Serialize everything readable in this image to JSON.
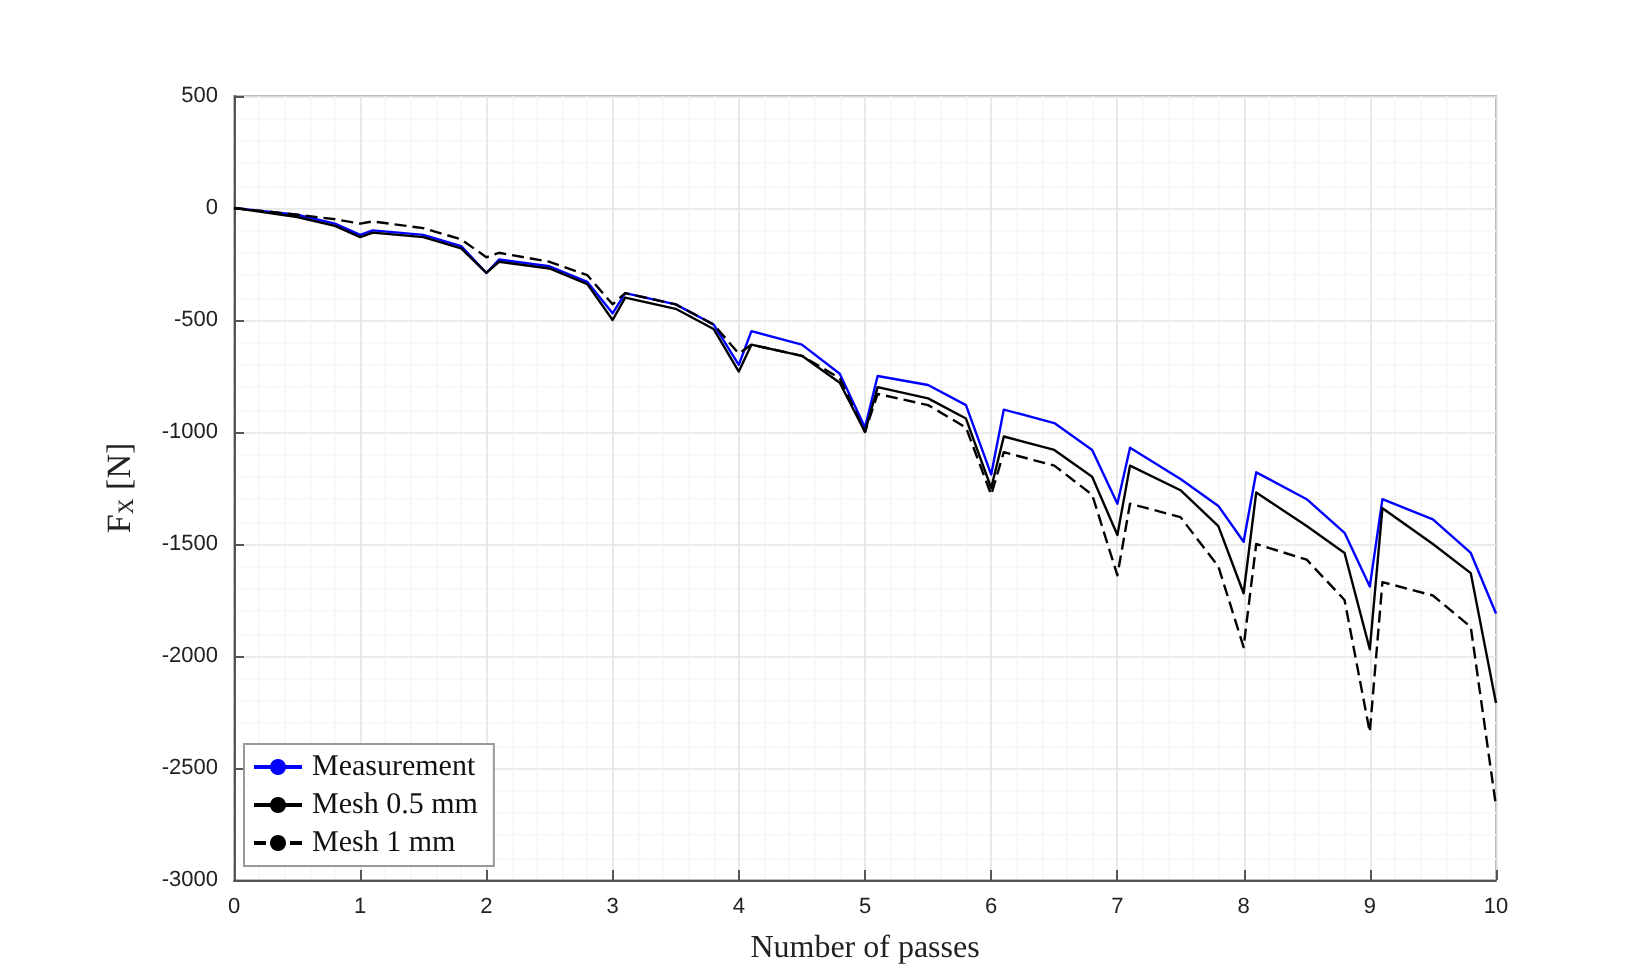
{
  "chart_data": {
    "type": "line",
    "xlabel": "Number of passes",
    "ylabel": "F$_{X}$ [N]",
    "x": [
      0,
      0.5,
      0.8,
      1,
      1.1,
      1.5,
      1.8,
      2,
      2.1,
      2.5,
      2.8,
      3,
      3.1,
      3.5,
      3.8,
      4,
      4.1,
      4.5,
      4.8,
      5,
      5.1,
      5.5,
      5.8,
      6,
      6.1,
      6.5,
      6.8,
      7,
      7.1,
      7.5,
      7.8,
      8,
      8.1,
      8.5,
      8.8,
      9,
      9.1,
      9.5,
      9.8,
      10
    ],
    "series": [
      {
        "name": "Measurement",
        "color": "#0000ff",
        "line_style": "solid",
        "values": [
          0,
          -30,
          -70,
          -120,
          -100,
          -120,
          -170,
          -290,
          -230,
          -260,
          -330,
          -470,
          -380,
          -430,
          -520,
          -700,
          -550,
          -610,
          -740,
          -980,
          -750,
          -790,
          -880,
          -1190,
          -900,
          -960,
          -1080,
          -1320,
          -1070,
          -1210,
          -1330,
          -1490,
          -1180,
          -1300,
          -1450,
          -1690,
          -1300,
          -1390,
          -1540,
          -1810
        ]
      },
      {
        "name": "Mesh 0.5 mm",
        "color": "#000000",
        "line_style": "solid",
        "values": [
          0,
          -40,
          -80,
          -130,
          -110,
          -130,
          -180,
          -290,
          -240,
          -270,
          -340,
          -500,
          -400,
          -450,
          -540,
          -730,
          -610,
          -660,
          -780,
          -1000,
          -800,
          -850,
          -940,
          -1250,
          -1020,
          -1080,
          -1200,
          -1460,
          -1150,
          -1260,
          -1420,
          -1720,
          -1270,
          -1420,
          -1540,
          -1970,
          -1340,
          -1500,
          -1630,
          -2210
        ]
      },
      {
        "name": "Mesh 1 mm",
        "color": "#000000",
        "line_style": "dashed",
        "values": [
          0,
          -30,
          -50,
          -70,
          -60,
          -90,
          -140,
          -220,
          -200,
          -240,
          -300,
          -430,
          -380,
          -430,
          -520,
          -650,
          -610,
          -660,
          -760,
          -1000,
          -830,
          -880,
          -980,
          -1280,
          -1090,
          -1150,
          -1280,
          -1640,
          -1320,
          -1380,
          -1600,
          -1960,
          -1500,
          -1570,
          -1750,
          -2340,
          -1670,
          -1730,
          -1870,
          -2670
        ]
      }
    ],
    "xlim": [
      0,
      10
    ],
    "xticks": [
      0,
      1,
      2,
      3,
      4,
      5,
      6,
      7,
      8,
      9,
      10
    ],
    "ylim": [
      -3000,
      500
    ],
    "yticks": [
      -3000,
      -2500,
      -2000,
      -1500,
      -1000,
      -500,
      0,
      500
    ],
    "grid": true,
    "legend": "bottom left",
    "marker": "none"
  }
}
